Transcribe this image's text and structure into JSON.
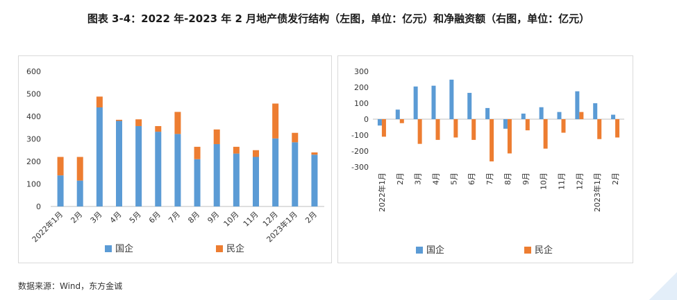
{
  "page": {
    "title": "图表 3-4：2022 年-2023 年 2 月地产债发行结构（左图，单位：亿元）和净融资额（右图，单位：亿元）",
    "source": "数据来源：Wind，东方金诚"
  },
  "colors": {
    "soe": "#5b9bd5",
    "private": "#ed7d31",
    "grid": "#d9d9d9",
    "axis": "#bfbfbf"
  },
  "chart_data": [
    {
      "type": "bar",
      "stacked": true,
      "categories": [
        "2022年1月",
        "2月",
        "3月",
        "4月",
        "5月",
        "6月",
        "7月",
        "8月",
        "9月",
        "10月",
        "11月",
        "12月",
        "2023年1月",
        "2月"
      ],
      "series": [
        {
          "name": "国企",
          "values": [
            138,
            115,
            440,
            380,
            357,
            332,
            322,
            210,
            277,
            235,
            220,
            302,
            285,
            230
          ]
        },
        {
          "name": "民企",
          "values": [
            82,
            105,
            48,
            5,
            30,
            25,
            98,
            55,
            65,
            30,
            30,
            155,
            42,
            10
          ]
        }
      ],
      "yticks": [
        0,
        100,
        200,
        300,
        400,
        500,
        600
      ],
      "ylim": [
        0,
        600
      ],
      "legend": "bottom",
      "grid": false
    },
    {
      "type": "bar",
      "stacked": false,
      "categories": [
        "2022年1月",
        "2月",
        "3月",
        "4月",
        "5月",
        "6月",
        "7月",
        "8月",
        "9月",
        "10月",
        "11月",
        "12月",
        "2023年1月",
        "2月"
      ],
      "series": [
        {
          "name": "国企",
          "values": [
            -40,
            60,
            205,
            210,
            248,
            165,
            70,
            -60,
            35,
            75,
            45,
            175,
            100,
            28
          ]
        },
        {
          "name": "民企",
          "values": [
            -110,
            -25,
            -155,
            -130,
            -115,
            -130,
            -265,
            -215,
            -70,
            -185,
            -85,
            45,
            -125,
            -115
          ]
        }
      ],
      "yticks": [
        -300,
        -200,
        -100,
        0,
        100,
        200,
        300
      ],
      "ylim": [
        -300,
        300
      ],
      "legend": "bottom",
      "grid": false
    }
  ]
}
